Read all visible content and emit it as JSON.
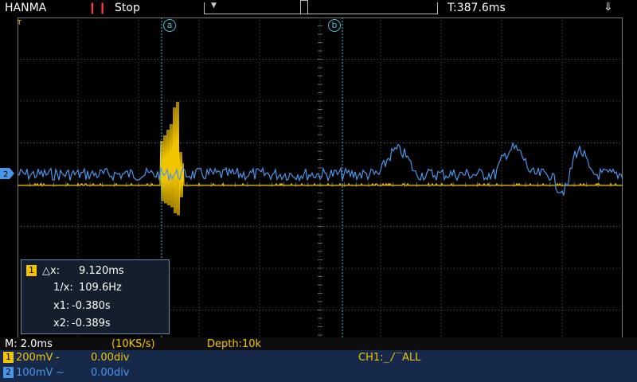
{
  "header": {
    "brand": "HANMA",
    "run_state": "Stop",
    "pause_icon": "pause-icon",
    "time_offset": "T:387.6ms",
    "usb_icon": "usb-icon"
  },
  "cursors": {
    "a_label": "a",
    "b_label": "b",
    "color": "#36c8d6"
  },
  "measure": {
    "channel": "1",
    "dx_label": "△x:",
    "dx_value": "9.120ms",
    "inv_label": "1/x:",
    "inv_value": "109.6Hz",
    "x1_label": "x1:",
    "x1_value": "-0.380s",
    "x2_label": "x2:",
    "x2_value": "-0.389s"
  },
  "status": {
    "timebase": "M: 2.0ms",
    "sample_rate": "(10KS/s)",
    "depth": "Depth:10k"
  },
  "channels": [
    {
      "num": "1",
      "scale": "200mV",
      "coupling": "-",
      "offset": "0.00div",
      "color": "#f3c400"
    },
    {
      "num": "2",
      "scale": "100mV",
      "coupling": "~",
      "offset": "0.00div",
      "color": "#4a96e8"
    }
  ],
  "trigger": {
    "label": "CH1:",
    "edge_icon": "rising-edge-icon",
    "mode": "ALL"
  },
  "colors": {
    "ch1": "#f3c400",
    "ch2": "#4a96e8",
    "grid": "#555",
    "cursor": "#36c8d6"
  }
}
